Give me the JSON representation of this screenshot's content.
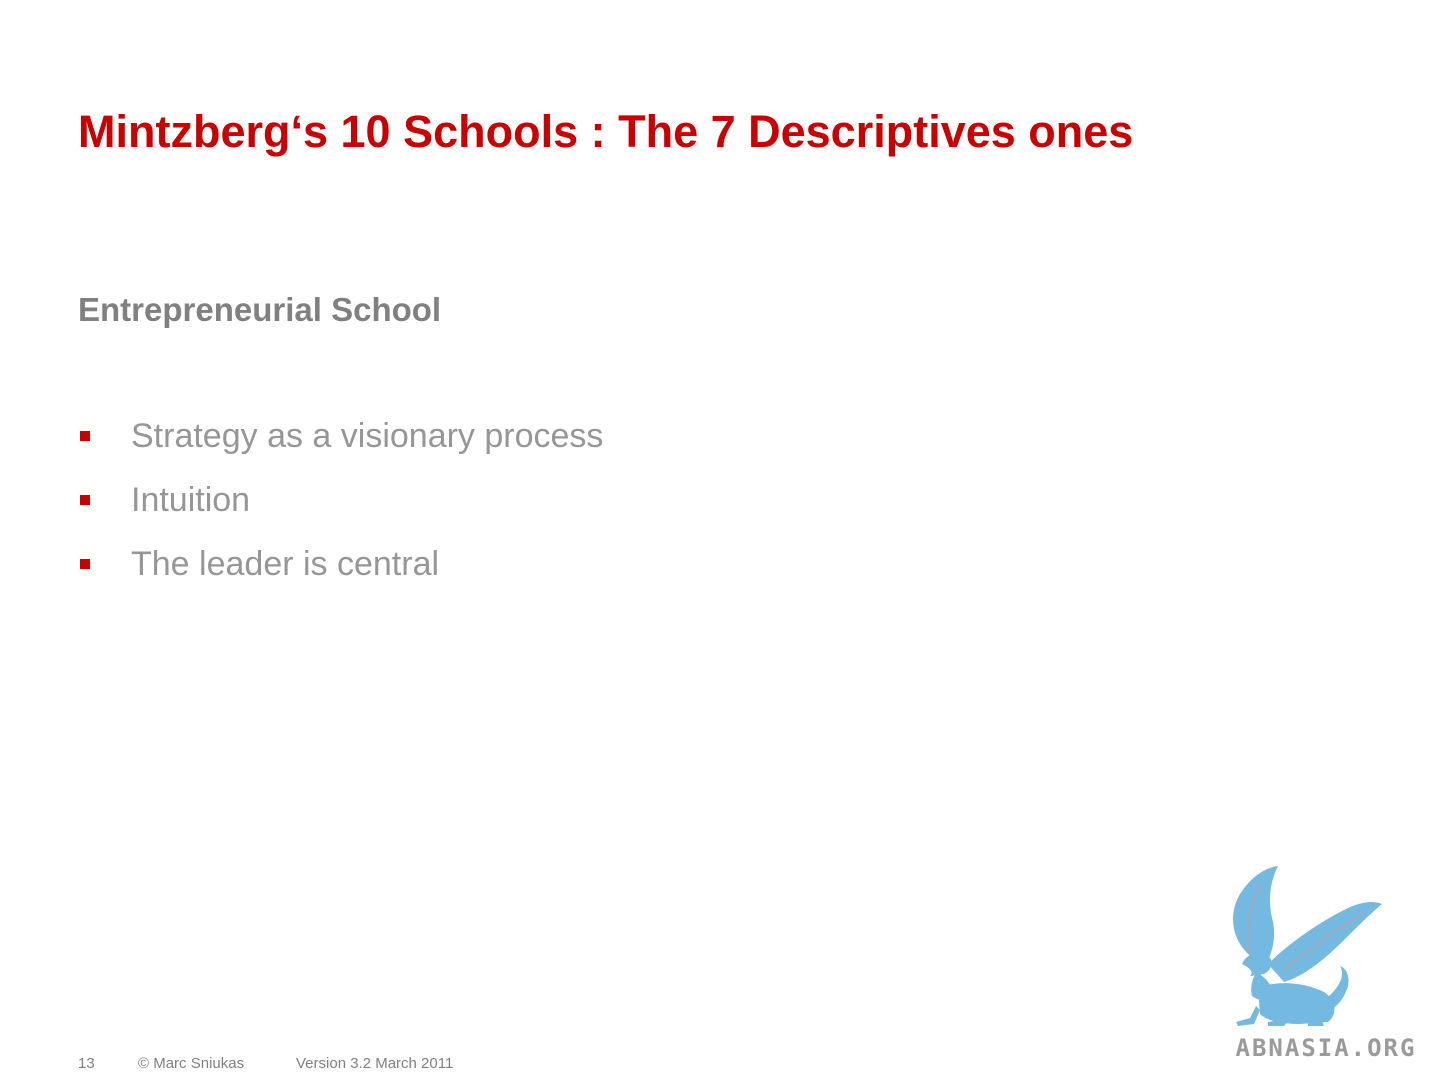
{
  "slide": {
    "title": "Mintzberg‘s 10 Schools : The 7 Descriptives ones",
    "section_heading": "Entrepreneurial School",
    "bullets": [
      "Strategy as a visionary process",
      "Intuition",
      "The leader is central"
    ]
  },
  "footer": {
    "page_number": "13",
    "copyright": "© Marc Sniukas",
    "version": "Version 3.2 March 2011"
  },
  "watermark": {
    "text": "ABNASIA.ORG",
    "icon": "griffin-logo-icon",
    "color": "#74b9e0"
  },
  "colors": {
    "title": "#cc0000",
    "heading": "#808080",
    "body_text": "#969696",
    "bullet": "#cc0000",
    "footer": "#808080",
    "watermark_text": "#9a9a9a"
  }
}
